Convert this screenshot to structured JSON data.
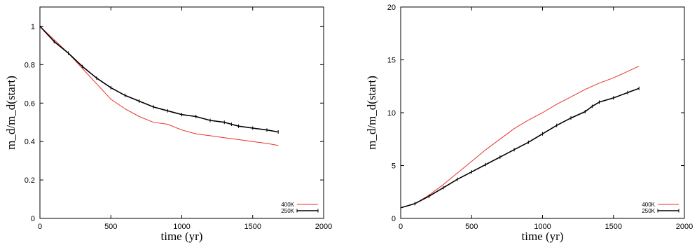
{
  "chart_data": [
    {
      "type": "line",
      "xlabel": "time (yr)",
      "ylabel": "m_d/m_d(start)",
      "xlim": [
        0,
        2000
      ],
      "ylim": [
        0,
        1.1
      ],
      "xticks": [
        0,
        500,
        1000,
        1500,
        2000
      ],
      "yticks": [
        0,
        0.2,
        0.4,
        0.6,
        0.8,
        1
      ],
      "ytick_labels": [
        "0",
        "0.2",
        "0.4",
        "0.6",
        "0.8",
        "1"
      ],
      "grid": false,
      "legend_position": "bottom-right",
      "series": [
        {
          "name": "400K",
          "color": "#e8322a",
          "markers": false,
          "x": [
            0,
            100,
            200,
            300,
            400,
            500,
            600,
            700,
            800,
            900,
            1000,
            1100,
            1200,
            1300,
            1400,
            1500,
            1600,
            1680
          ],
          "y": [
            1.0,
            0.93,
            0.86,
            0.78,
            0.7,
            0.62,
            0.57,
            0.53,
            0.5,
            0.49,
            0.46,
            0.44,
            0.43,
            0.42,
            0.41,
            0.4,
            0.39,
            0.38
          ]
        },
        {
          "name": "250K",
          "color": "#000000",
          "markers": true,
          "x": [
            0,
            100,
            200,
            300,
            400,
            500,
            600,
            700,
            800,
            900,
            1000,
            1100,
            1200,
            1300,
            1350,
            1400,
            1500,
            1600,
            1680
          ],
          "y": [
            1.0,
            0.92,
            0.86,
            0.79,
            0.73,
            0.68,
            0.64,
            0.61,
            0.58,
            0.56,
            0.54,
            0.53,
            0.51,
            0.5,
            0.49,
            0.48,
            0.47,
            0.46,
            0.45
          ]
        }
      ]
    },
    {
      "type": "line",
      "xlabel": "time (yr)",
      "ylabel": "m_d/m_d(start)",
      "xlim": [
        0,
        2000
      ],
      "ylim": [
        0,
        20
      ],
      "xticks": [
        0,
        500,
        1000,
        1500,
        2000
      ],
      "yticks": [
        0,
        5,
        10,
        15,
        20
      ],
      "ytick_labels": [
        "0",
        "5",
        "10",
        "15",
        "20"
      ],
      "grid": false,
      "legend_position": "bottom-right",
      "series": [
        {
          "name": "400K",
          "color": "#e8322a",
          "markers": false,
          "x": [
            0,
            100,
            200,
            300,
            400,
            500,
            600,
            700,
            800,
            900,
            1000,
            1100,
            1200,
            1300,
            1400,
            1500,
            1600,
            1680
          ],
          "y": [
            1.0,
            1.4,
            2.2,
            3.2,
            4.3,
            5.4,
            6.5,
            7.5,
            8.5,
            9.3,
            10.0,
            10.8,
            11.5,
            12.2,
            12.8,
            13.3,
            13.9,
            14.4
          ]
        },
        {
          "name": "250K",
          "color": "#000000",
          "markers": true,
          "x": [
            0,
            100,
            200,
            300,
            400,
            500,
            600,
            700,
            800,
            900,
            1000,
            1100,
            1200,
            1300,
            1350,
            1400,
            1500,
            1600,
            1680
          ],
          "y": [
            1.0,
            1.4,
            2.1,
            2.9,
            3.7,
            4.4,
            5.1,
            5.8,
            6.5,
            7.2,
            8.0,
            8.8,
            9.5,
            10.1,
            10.6,
            11.0,
            11.4,
            11.9,
            12.3
          ]
        }
      ]
    }
  ]
}
